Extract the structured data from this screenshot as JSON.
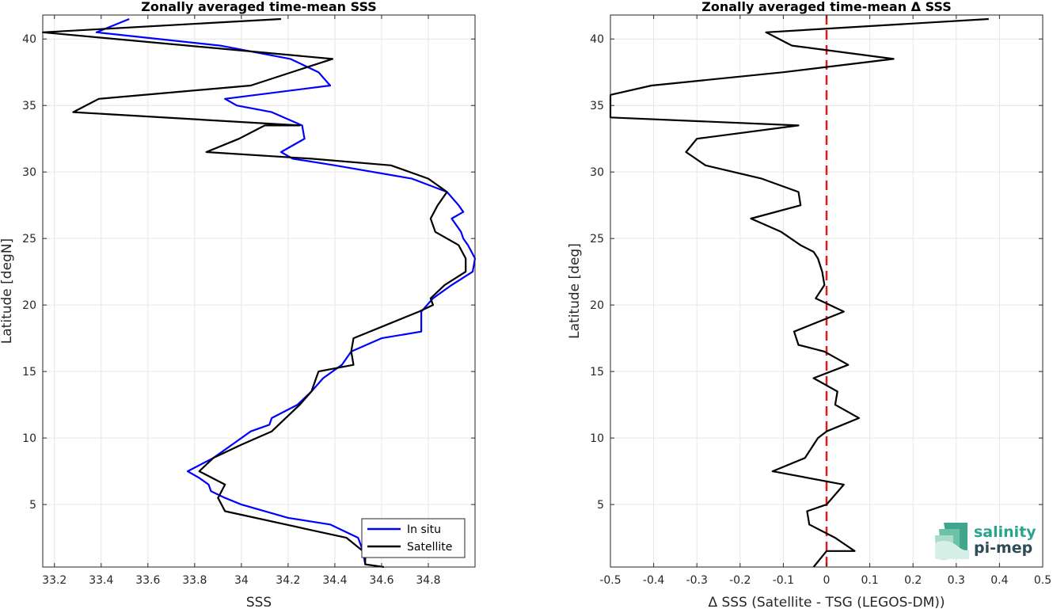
{
  "chart_data": [
    {
      "type": "line",
      "title": "Zonally averaged time-mean SSS",
      "xlabel": "SSS",
      "ylabel": "Latitude [degN]",
      "xlim": [
        33.15,
        35.0
      ],
      "ylim": [
        0.3,
        41.8
      ],
      "xticks": [
        33.2,
        33.4,
        33.6,
        33.8,
        34,
        34.2,
        34.4,
        34.6,
        34.8
      ],
      "xtick_labels": [
        "33.2",
        "33.4",
        "33.6",
        "33.8",
        "34",
        "34.2",
        "34.4",
        "34.6",
        "34.8"
      ],
      "yticks": [
        5,
        10,
        15,
        20,
        25,
        30,
        35,
        40
      ],
      "ytick_labels": [
        "5",
        "10",
        "15",
        "20",
        "25",
        "30",
        "35",
        "40"
      ],
      "grid": true,
      "legend_position": "bottom-right",
      "series": [
        {
          "name": "In situ",
          "color": "#0000ff",
          "x": [
            34.53,
            34.52,
            34.5,
            34.38,
            34.2,
            34.0,
            33.93,
            33.87,
            33.86,
            33.82,
            33.77,
            33.88,
            33.96,
            34.04,
            34.12,
            34.13,
            34.24,
            34.3,
            34.35,
            34.43,
            34.47,
            34.6,
            34.77,
            34.77,
            34.82,
            34.9,
            34.99,
            35.0,
            34.97,
            34.95,
            34.94,
            34.9,
            34.95,
            34.93,
            34.88,
            34.73,
            34.4,
            34.22,
            34.17,
            34.27,
            34.26,
            34.13,
            33.98,
            33.93,
            34.38,
            34.33,
            34.21,
            33.91,
            33.38,
            33.52
          ],
          "y": [
            0.5,
            1.5,
            2.5,
            3.5,
            4.0,
            5.0,
            5.5,
            6.0,
            6.5,
            7.0,
            7.5,
            8.5,
            9.5,
            10.5,
            11.0,
            11.5,
            12.5,
            13.5,
            14.5,
            15.5,
            16.5,
            17.5,
            18.0,
            19.5,
            20.5,
            21.5,
            22.5,
            23.5,
            24.5,
            25.0,
            25.5,
            26.5,
            27.0,
            27.5,
            28.5,
            29.5,
            30.5,
            31.0,
            31.5,
            32.5,
            33.5,
            34.5,
            35.0,
            35.5,
            36.5,
            37.5,
            38.5,
            39.5,
            40.5,
            41.5
          ]
        },
        {
          "name": "Satellite",
          "color": "#000000",
          "x": [
            34.61,
            34.53,
            34.53,
            34.52,
            34.45,
            33.93,
            33.9,
            33.93,
            33.82,
            33.88,
            34.0,
            34.13,
            34.25,
            34.3,
            34.32,
            34.33,
            34.48,
            34.47,
            34.48,
            34.62,
            34.76,
            34.82,
            34.81,
            34.87,
            34.96,
            34.96,
            34.93,
            34.83,
            34.81,
            34.84,
            34.88,
            34.8,
            34.64,
            34.3,
            33.85,
            33.99,
            34.1,
            34.25,
            33.28,
            33.39,
            34.04,
            34.39,
            33.15,
            34.17
          ],
          "y": [
            0.0,
            0.5,
            1.0,
            1.5,
            2.5,
            4.5,
            5.5,
            6.5,
            7.5,
            8.5,
            9.5,
            10.5,
            12.5,
            13.5,
            14.5,
            15.0,
            15.5,
            16.5,
            17.5,
            18.5,
            19.5,
            20.0,
            20.5,
            21.5,
            22.5,
            23.5,
            24.5,
            25.5,
            26.5,
            27.5,
            28.5,
            29.5,
            30.5,
            31.0,
            31.5,
            32.5,
            33.5,
            33.5,
            34.5,
            35.5,
            36.5,
            38.5,
            40.5,
            41.5
          ]
        }
      ]
    },
    {
      "type": "line",
      "title": "Zonally averaged time-mean Δ SSS",
      "xlabel": "Δ SSS (Satellite - TSG (LEGOS-DM))",
      "ylabel": "Latitude [deg]",
      "xlim": [
        -0.5,
        0.5
      ],
      "ylim": [
        0.3,
        41.8
      ],
      "xticks": [
        -0.5,
        -0.4,
        -0.3,
        -0.2,
        -0.1,
        0,
        0.1,
        0.2,
        0.3,
        0.4,
        0.5
      ],
      "xtick_labels": [
        "-0.5",
        "-0.4",
        "-0.3",
        "-0.2",
        "-0.1",
        "0",
        "0.1",
        "0.2",
        "0.3",
        "0.4",
        "0.5"
      ],
      "yticks": [
        5,
        10,
        15,
        20,
        25,
        30,
        35,
        40
      ],
      "ytick_labels": [
        "5",
        "10",
        "15",
        "20",
        "25",
        "30",
        "35",
        "40"
      ],
      "grid": true,
      "reference_line": {
        "x": 0,
        "color": "#e31a1c",
        "style": "dashed"
      },
      "series": [
        {
          "name": "",
          "color": "#000000",
          "x": [
            -0.03,
            0.0,
            0.065,
            0.02,
            -0.04,
            -0.045,
            0.0,
            0.04,
            -0.125,
            -0.05,
            -0.04,
            -0.02,
            0.0,
            0.075,
            0.02,
            0.025,
            -0.03,
            0.05,
            -0.005,
            -0.065,
            -0.075,
            0.04,
            -0.025,
            -0.005,
            -0.01,
            -0.02,
            -0.03,
            -0.06,
            -0.105,
            -0.175,
            -0.06,
            -0.065,
            -0.15,
            -0.28,
            -0.325,
            -0.3,
            -0.065,
            -0.5,
            -0.5,
            -0.405,
            -0.1,
            0.155,
            -0.08,
            -0.14,
            0.375
          ],
          "y": [
            0.3,
            1.5,
            1.5,
            2.5,
            3.5,
            4.5,
            5.0,
            6.5,
            7.5,
            8.5,
            9.0,
            10.0,
            10.5,
            11.5,
            12.5,
            13.5,
            14.5,
            15.5,
            16.5,
            17.0,
            18.0,
            19.5,
            20.5,
            21.5,
            22.5,
            23.5,
            24.0,
            24.5,
            25.5,
            26.5,
            27.5,
            28.5,
            29.5,
            30.5,
            31.5,
            32.5,
            33.5,
            34.1,
            35.8,
            36.5,
            37.5,
            38.5,
            39.5,
            40.5,
            41.5
          ]
        }
      ]
    }
  ],
  "legend": {
    "items": [
      "In situ",
      "Satellite"
    ]
  },
  "logo": {
    "line1": "salinity",
    "line2": "pi-mep"
  }
}
